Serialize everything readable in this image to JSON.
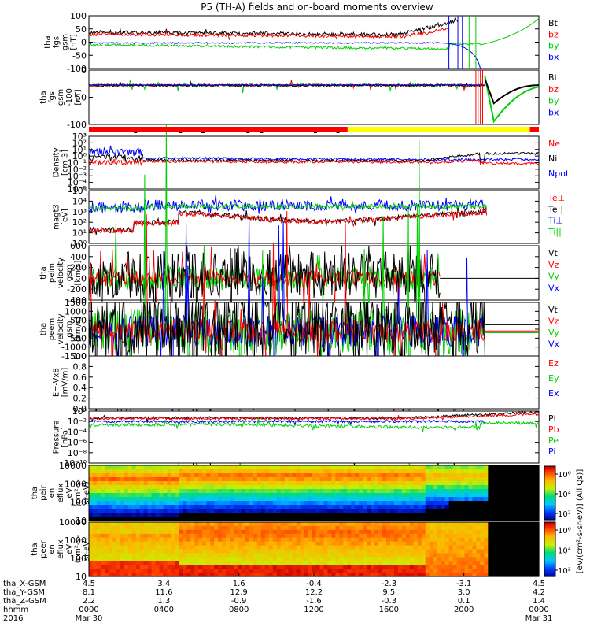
{
  "title": "P5 (TH-A) fields and on-board moments overview",
  "colors": {
    "black": "#000000",
    "red": "#ff0000",
    "green": "#00d000",
    "blue": "#0000ff",
    "yellow": "#ffff00",
    "bar_red": "#ff0000"
  },
  "panels": [
    {
      "id": "fgs",
      "ylabel": [
        "tha",
        "fgs",
        "gsm",
        "[nT]"
      ],
      "ticks": [
        "100",
        "50",
        "0",
        "-50",
        "-100"
      ],
      "legend": [
        "Bt",
        "bz",
        "by",
        "bx"
      ],
      "legend_colors": [
        "#000000",
        "#ff0000",
        "#00d000",
        "#0000ff"
      ]
    },
    {
      "id": "fgs2",
      "ylabel": [
        "tha",
        "fgs",
        "gsm",
        "-100",
        "[nT]"
      ],
      "ticks": [
        "0",
        "-50",
        "-100"
      ],
      "legend": [
        "Bt",
        "bz",
        "by",
        "bx"
      ],
      "legend_colors": [
        "#000000",
        "#ff0000",
        "#00d000",
        "#0000ff"
      ]
    },
    {
      "id": "density",
      "ylabel": [
        "Density",
        "[cm-3]"
      ],
      "ticks": [
        "10³",
        "10²",
        "10¹",
        "10⁰",
        "10⁻¹",
        "10⁻²",
        "10⁻³",
        "10⁻⁴",
        "10⁻⁵"
      ],
      "legend": [
        "Ne",
        "Ni",
        "Npot"
      ],
      "legend_colors": [
        "#ff0000",
        "#000000",
        "#0000ff"
      ]
    },
    {
      "id": "temp",
      "ylabel": [
        "magt3",
        "[eV]"
      ],
      "ticks": [
        "10⁵",
        "10⁴",
        "10³",
        "10²",
        "10¹",
        "10⁰"
      ],
      "legend": [
        "Te⊥",
        "Te||",
        "Ti⊥",
        "Ti||"
      ],
      "legend_colors": [
        "#ff0000",
        "#000000",
        "#0000ff",
        "#00d000"
      ]
    },
    {
      "id": "peim",
      "ylabel": [
        "tha",
        "peim",
        "velocity",
        "gsm",
        "[km/s]"
      ],
      "ticks": [
        "600",
        "400",
        "200",
        "0",
        "-200",
        "-400"
      ],
      "legend": [
        "Vt",
        "Vz",
        "Vy",
        "Vx"
      ],
      "legend_colors": [
        "#000000",
        "#ff0000",
        "#00d000",
        "#0000ff"
      ]
    },
    {
      "id": "peem",
      "ylabel": [
        "tha",
        "peem",
        "velocity",
        "gsm",
        "[km/s]"
      ],
      "ticks": [
        "1500",
        "1000",
        "500",
        "0",
        "-500",
        "-1000",
        "-1500"
      ],
      "legend": [
        "Vt",
        "Vz",
        "Vy",
        "Vx"
      ],
      "legend_colors": [
        "#000000",
        "#ff0000",
        "#00d000",
        "#0000ff"
      ]
    },
    {
      "id": "efield",
      "ylabel": [
        "E=-VxB",
        "[mV/m]"
      ],
      "ticks": [
        "1.0",
        "0.8",
        "0.6",
        "0.4",
        "0.2",
        "0.0"
      ],
      "legend": [
        "Ez",
        "Ey",
        "Ex"
      ],
      "legend_colors": [
        "#ff0000",
        "#00d000",
        "#0000ff"
      ]
    },
    {
      "id": "pressure",
      "ylabel": [
        "Pressure",
        "[nPa]"
      ],
      "ticks": [
        "10⁰",
        "10⁻²",
        "10⁻⁴",
        "10⁻⁶",
        "10⁻⁸",
        "10⁻¹⁰"
      ],
      "legend": [
        "Pt",
        "Pb",
        "Pe",
        "Pi"
      ],
      "legend_colors": [
        "#000000",
        "#ff0000",
        "#00d000",
        "#0000ff"
      ]
    },
    {
      "id": "peir",
      "ylabel": [
        "tha",
        "peir",
        "en",
        "eflux",
        "eV",
        "(cm²-s-",
        "sr-eV)"
      ],
      "ticks": [
        "10000",
        "1000",
        "100",
        "10"
      ],
      "legend": [],
      "legend_colors": []
    },
    {
      "id": "peer",
      "ylabel": [
        "tha",
        "peer",
        "en",
        "eflux",
        "eV",
        "(cm²-s-",
        "sr-eV)"
      ],
      "ticks": [
        "10000",
        "1000",
        "100",
        "10"
      ],
      "legend": [],
      "legend_colors": []
    }
  ],
  "colorbar": {
    "label": "[eV/(cm²-s-sr-eV)] (All Qs)]",
    "top_ticks": [
      "10⁶",
      "10⁴",
      "10²"
    ],
    "bottom_ticks": [
      "10⁶",
      "10⁴",
      "10²"
    ]
  },
  "xaxis": {
    "row_labels": [
      "tha_X-GSM",
      "tha_Y-GSM",
      "tha_Z-GSM",
      "hhmm",
      "2016"
    ],
    "columns": [
      {
        "x": "4.5",
        "y": "8.1",
        "z": "2.2",
        "hhmm": "0000",
        "date": "Mar 30"
      },
      {
        "x": "3.4",
        "y": "11.6",
        "z": "1.3",
        "hhmm": "0400",
        "date": ""
      },
      {
        "x": "1.6",
        "y": "12.9",
        "z": "-0.9",
        "hhmm": "0800",
        "date": ""
      },
      {
        "x": "-0.4",
        "y": "12.2",
        "z": "-1.6",
        "hhmm": "1200",
        "date": ""
      },
      {
        "x": "-2.3",
        "y": "9.5",
        "z": "-0.3",
        "hhmm": "1600",
        "date": ""
      },
      {
        "x": "-3.1",
        "y": "3.0",
        "z": "0.1",
        "hhmm": "2000",
        "date": ""
      },
      {
        "x": "4.5",
        "y": "4.2",
        "z": "1.4",
        "hhmm": "0000",
        "date": "Mar 31"
      }
    ]
  },
  "chart_data": {
    "type": "line",
    "title": "P5 (TH-A) fields and on-board moments overview",
    "x": [
      "0000",
      "0400",
      "0800",
      "1200",
      "1600",
      "2000",
      "0000"
    ],
    "panels": [
      {
        "name": "fgs gsm",
        "ylim": [
          -100,
          100
        ],
        "series": [
          {
            "name": "Bt",
            "values": [
              35,
              28,
              22,
              20,
              24,
              60,
              100
            ]
          },
          {
            "name": "bz",
            "values": [
              30,
              25,
              20,
              18,
              20,
              30,
              100
            ]
          },
          {
            "name": "by",
            "values": [
              -10,
              -8,
              -5,
              -5,
              -3,
              20,
              100
            ]
          },
          {
            "name": "bx",
            "values": [
              -5,
              -3,
              -2,
              -2,
              -2,
              -10,
              -100
            ]
          }
        ]
      },
      {
        "name": "fgs gsm -100",
        "ylim": [
          -130,
          50
        ],
        "series": [
          {
            "name": "Bt",
            "values": [
              0,
              0,
              0,
              0,
              0,
              -10,
              0
            ]
          },
          {
            "name": "bz",
            "values": [
              0,
              0,
              0,
              0,
              0,
              -10,
              0
            ]
          },
          {
            "name": "by",
            "values": [
              0,
              0,
              0,
              0,
              0,
              -10,
              -40
            ]
          },
          {
            "name": "bx",
            "values": [
              0,
              0,
              0,
              0,
              0,
              0,
              0
            ]
          }
        ]
      },
      {
        "name": "Density",
        "scale": "log",
        "series": [
          {
            "name": "Ne",
            "values": [
              0.1,
              0.3,
              0.3,
              0.3,
              0.2,
              0.1,
              0.1
            ]
          },
          {
            "name": "Ni",
            "values": [
              1,
              0.3,
              0.3,
              0.3,
              0.2,
              1,
              1
            ]
          },
          {
            "name": "Npot",
            "values": [
              10,
              0.4,
              0.4,
              0.4,
              0.3,
              0.5,
              0.5
            ]
          }
        ]
      },
      {
        "name": "magt3",
        "scale": "log",
        "series": [
          {
            "name": "Te⊥",
            "values": [
              30,
              300,
              500,
              800,
              600,
              500,
              300
            ]
          },
          {
            "name": "Te||",
            "values": [
              30,
              300,
              500,
              800,
              600,
              500,
              300
            ]
          },
          {
            "name": "Ti⊥",
            "values": [
              3000,
              5000,
              4000,
              5000,
              5000,
              3000,
              2000
            ]
          },
          {
            "name": "Ti||",
            "values": [
              3000,
              4000,
              4000,
              4000,
              4000,
              3000,
              2000
            ]
          }
        ]
      }
    ]
  }
}
